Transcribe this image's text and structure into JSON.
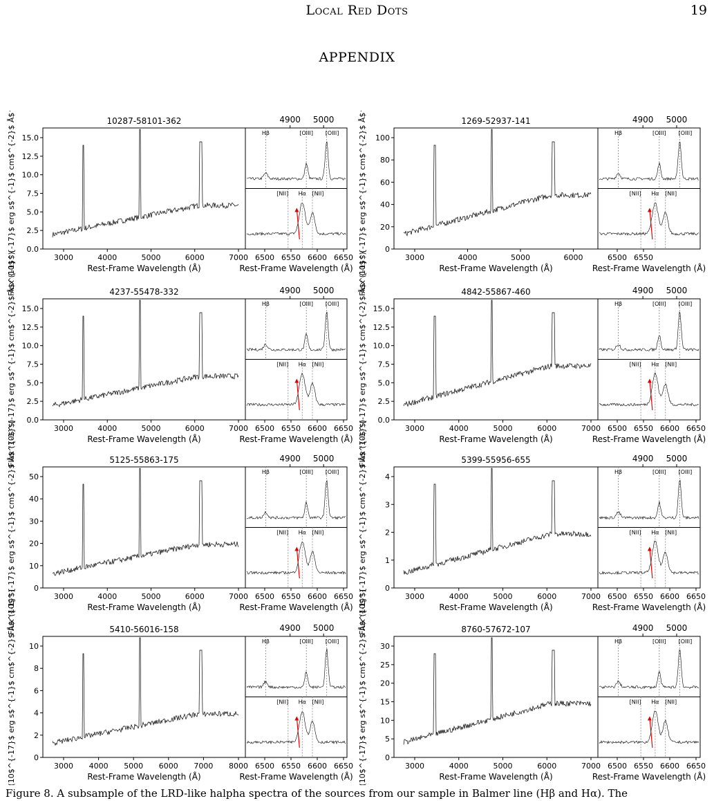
{
  "header": {
    "running_title": "Local Red Dots",
    "page_number": "19"
  },
  "section_title": "APPENDIX",
  "figure": {
    "ylabel": "Flux (10$^{-17}$ erg s$^{-1}$ cm$^{-2}$ Å$^{-1}$)",
    "xlabel": "Rest-Frame Wavelength (Å)",
    "inset_top_ticks": [
      "4900",
      "5000"
    ],
    "inset_bottom_ticks": [
      "6500",
      "6550",
      "6600",
      "6650"
    ],
    "line_labels": {
      "hb": "Hβ",
      "oiii": "[OIII]",
      "nii": "[NII]",
      "ha": "Hα"
    },
    "panels": [
      {
        "id": "10287-58101-362",
        "yticks": [
          "0.0",
          "2.5",
          "5.0",
          "7.5",
          "10.0",
          "12.5",
          "15.0"
        ],
        "xticks": [
          "3000",
          "4000",
          "5000",
          "6000",
          "7000"
        ],
        "insetTicks": [
          "6500",
          "6550",
          "6600",
          "6650"
        ]
      },
      {
        "id": "1269-52937-141",
        "yticks": [
          "0",
          "20",
          "40",
          "60",
          "80",
          "100"
        ],
        "xticks": [
          "3000",
          "4000",
          "5000",
          "6000"
        ],
        "insetTicks": [
          "6500",
          "6550"
        ]
      },
      {
        "id": "4237-55478-332",
        "yticks": [
          "0.0",
          "2.5",
          "5.0",
          "7.5",
          "10.0",
          "12.5",
          "15.0"
        ],
        "xticks": [
          "3000",
          "4000",
          "5000",
          "6000",
          "7000"
        ],
        "insetTicks": [
          "6500",
          "6550",
          "6600",
          "6650"
        ]
      },
      {
        "id": "4842-55867-460",
        "yticks": [
          "0.0",
          "2.5",
          "5.0",
          "7.5",
          "10.0",
          "12.5",
          "15.0"
        ],
        "xticks": [
          "3000",
          "4000",
          "5000",
          "6000",
          "7000"
        ],
        "insetTicks": [
          "6500",
          "6550",
          "6600",
          "6650"
        ]
      },
      {
        "id": "5125-55863-175",
        "yticks": [
          "0",
          "10",
          "20",
          "30",
          "40",
          "50"
        ],
        "xticks": [
          "3000",
          "4000",
          "5000",
          "6000",
          "7000"
        ],
        "insetTicks": [
          "6500",
          "6550",
          "6600",
          "6650"
        ]
      },
      {
        "id": "5399-55956-655",
        "yticks": [
          "0",
          "1",
          "2",
          "3",
          "4"
        ],
        "xticks": [
          "3000",
          "4000",
          "5000",
          "6000",
          "7000"
        ],
        "insetTicks": [
          "6500",
          "6550",
          "6600",
          "6650"
        ]
      },
      {
        "id": "5410-56016-158",
        "yticks": [
          "0",
          "2",
          "4",
          "6",
          "8",
          "10"
        ],
        "xticks": [
          "3000",
          "4000",
          "5000",
          "6000",
          "7000",
          "8000"
        ],
        "insetTicks": [
          "6500",
          "6550",
          "6600",
          "6650"
        ]
      },
      {
        "id": "8760-57672-107",
        "yticks": [
          "0",
          "5",
          "10",
          "15",
          "20",
          "25",
          "30"
        ],
        "xticks": [
          "3000",
          "4000",
          "5000",
          "6000",
          "7000"
        ],
        "insetTicks": [
          "6500",
          "6550",
          "6600",
          "6650"
        ]
      }
    ]
  },
  "caption": "Figure 8. A subsample of the LRD-like halpha spectra of the sources from our sample in Balmer line (Hβ and Hα). The"
}
